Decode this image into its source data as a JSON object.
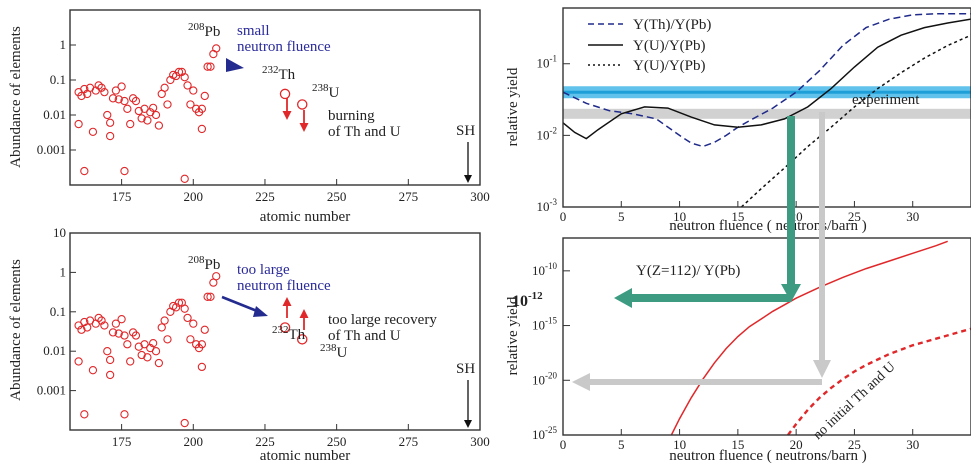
{
  "colors": {
    "marker": "#e0282a",
    "blue_arrow": "#232b8f",
    "red_arrow": "#e0282a",
    "green": "#3d9b82",
    "gray": "#c9c9c9",
    "band_blue": "#45b8e8",
    "band_gray": "#c8c8c8",
    "line_th": "#1f2a8a",
    "line_u": "#111111",
    "line_z112": "#e0282a"
  },
  "chart_data": [
    {
      "type": "scatter",
      "panel": "top-left",
      "ylabel": "Abundance of elements",
      "xlabel": "atomic  number",
      "xlim": [
        157,
        300
      ],
      "ylim": [
        0.0001,
        10
      ],
      "log_y": true,
      "x_ticks": [
        "175",
        "200",
        "225",
        "250",
        "275",
        "300"
      ],
      "y_ticks": [
        "0.001",
        "0.01",
        "0.1",
        "1"
      ],
      "points": [
        {
          "x": 160,
          "y": 0.045
        },
        {
          "x": 160,
          "y": 0.0055
        },
        {
          "x": 161,
          "y": 0.035
        },
        {
          "x": 162,
          "y": 0.055
        },
        {
          "x": 162,
          "y": 0.00025
        },
        {
          "x": 163,
          "y": 0.04
        },
        {
          "x": 164,
          "y": 0.06
        },
        {
          "x": 165,
          "y": 0.0033
        },
        {
          "x": 166,
          "y": 0.05
        },
        {
          "x": 167,
          "y": 0.07
        },
        {
          "x": 168,
          "y": 0.06
        },
        {
          "x": 169,
          "y": 0.045
        },
        {
          "x": 170,
          "y": 0.01
        },
        {
          "x": 171,
          "y": 0.006
        },
        {
          "x": 171,
          "y": 0.0025
        },
        {
          "x": 172,
          "y": 0.03
        },
        {
          "x": 173,
          "y": 0.05
        },
        {
          "x": 174,
          "y": 0.028
        },
        {
          "x": 175,
          "y": 0.065
        },
        {
          "x": 176,
          "y": 0.025
        },
        {
          "x": 176,
          "y": 0.00025
        },
        {
          "x": 177,
          "y": 0.015
        },
        {
          "x": 178,
          "y": 0.0055
        },
        {
          "x": 179,
          "y": 0.03
        },
        {
          "x": 180,
          "y": 0.025
        },
        {
          "x": 181,
          "y": 0.013
        },
        {
          "x": 182,
          "y": 0.008
        },
        {
          "x": 183,
          "y": 0.015
        },
        {
          "x": 184,
          "y": 0.007
        },
        {
          "x": 185,
          "y": 0.012
        },
        {
          "x": 186,
          "y": 0.016
        },
        {
          "x": 187,
          "y": 0.01
        },
        {
          "x": 188,
          "y": 0.005
        },
        {
          "x": 189,
          "y": 0.04
        },
        {
          "x": 190,
          "y": 0.06
        },
        {
          "x": 191,
          "y": 0.02
        },
        {
          "x": 192,
          "y": 0.1
        },
        {
          "x": 193,
          "y": 0.14
        },
        {
          "x": 194,
          "y": 0.13
        },
        {
          "x": 195,
          "y": 0.17
        },
        {
          "x": 196,
          "y": 0.17
        },
        {
          "x": 197,
          "y": 0.12
        },
        {
          "x": 197,
          "y": 0.00015
        },
        {
          "x": 198,
          "y": 0.07
        },
        {
          "x": 199,
          "y": 0.02
        },
        {
          "x": 200,
          "y": 0.05
        },
        {
          "x": 201,
          "y": 0.015
        },
        {
          "x": 202,
          "y": 0.012
        },
        {
          "x": 203,
          "y": 0.004
        },
        {
          "x": 203,
          "y": 0.015
        },
        {
          "x": 204,
          "y": 0.035
        },
        {
          "x": 205,
          "y": 0.24
        },
        {
          "x": 206,
          "y": 0.24
        },
        {
          "x": 207,
          "y": 0.55
        },
        {
          "x": 208,
          "y": 0.8
        }
      ],
      "highlight_points": [
        {
          "x": 232,
          "y": 0.04
        },
        {
          "x": 238,
          "y": 0.02
        }
      ],
      "labels": {
        "pb_mass": "208",
        "pb": "Pb",
        "fluence_1": "small",
        "fluence_2": "neutron fluence",
        "th_mass": "232",
        "th": "Th",
        "u_mass": "238",
        "u": "U",
        "note_1": "burning",
        "note_2": "of Th and U",
        "sh": "SH"
      }
    },
    {
      "type": "scatter",
      "panel": "bottom-left",
      "ylabel": "Abundance of elements",
      "xlabel": "atomic  number",
      "xlim": [
        157,
        300
      ],
      "ylim": [
        0.0001,
        10
      ],
      "log_y": true,
      "x_ticks": [
        "175",
        "200",
        "225",
        "250",
        "275",
        "300"
      ],
      "y_ticks": [
        "0.001",
        "0.01",
        "0.1",
        "1",
        "10"
      ],
      "highlight_points": [
        {
          "x": 232,
          "y": 0.04
        },
        {
          "x": 238,
          "y": 0.02
        }
      ],
      "labels": {
        "pb_mass": "208",
        "pb": "Pb",
        "fluence_1": "too large",
        "fluence_2": "neutron fluence",
        "th_mass": "232",
        "th": "Th",
        "u_mass": "238",
        "u": "U",
        "note_1": "too large recovery",
        "note_2": "of Th and U",
        "sh": "SH"
      }
    },
    {
      "type": "line",
      "panel": "top-right",
      "ylabel": "relative yield",
      "xlabel": "neutron fluence  ( neutrons/barn )",
      "xlim": [
        0,
        35
      ],
      "ylim": [
        0.001,
        0.6
      ],
      "log_y": true,
      "x_ticks": [
        "0",
        "5",
        "10",
        "15",
        "20",
        "25",
        "30"
      ],
      "y_ticks": [
        {
          "base": "10",
          "exp": "-1",
          "v": 0.1
        },
        {
          "base": "10",
          "exp": "-2",
          "v": 0.01
        },
        {
          "base": "10",
          "exp": "-3",
          "v": 0.001
        }
      ],
      "legend": [
        "Y(Th)/Y(Pb)",
        "Y(U)/Y(Pb)",
        "Y(U)/Y(Pb)"
      ],
      "experiment_label": "experiment",
      "series": [
        {
          "name": "Y(Th)/Y(Pb)",
          "style": "dashed",
          "x": [
            0,
            2,
            4,
            6,
            8,
            10,
            11,
            12,
            13,
            14,
            15,
            16,
            18,
            20,
            22,
            24,
            26,
            28,
            30,
            32,
            35
          ],
          "y": [
            0.04,
            0.028,
            0.022,
            0.02,
            0.017,
            0.01,
            0.0078,
            0.007,
            0.008,
            0.01,
            0.013,
            0.016,
            0.024,
            0.04,
            0.08,
            0.18,
            0.32,
            0.42,
            0.48,
            0.5,
            0.5
          ]
        },
        {
          "name": "Y(U)/Y(Pb)",
          "style": "solid",
          "x": [
            0,
            1,
            2,
            3,
            5,
            7,
            9,
            11,
            13,
            15,
            17,
            19,
            21,
            23,
            25,
            27,
            29,
            31,
            33,
            35
          ],
          "y": [
            0.015,
            0.011,
            0.009,
            0.012,
            0.02,
            0.025,
            0.024,
            0.018,
            0.014,
            0.013,
            0.014,
            0.017,
            0.025,
            0.045,
            0.09,
            0.17,
            0.25,
            0.32,
            0.37,
            0.42
          ]
        },
        {
          "name": "Y(U)/Y(Pb)",
          "style": "dotted",
          "x": [
            15.3,
            17,
            19,
            21,
            23,
            25,
            27,
            29,
            31,
            33,
            35
          ],
          "y": [
            0.001,
            0.0018,
            0.0035,
            0.007,
            0.013,
            0.025,
            0.045,
            0.075,
            0.12,
            0.18,
            0.25
          ]
        }
      ],
      "bands": [
        {
          "color": "band_blue",
          "y": 0.04
        },
        {
          "color": "band_gray",
          "y": 0.02
        }
      ]
    },
    {
      "type": "line",
      "panel": "bottom-right",
      "ylabel": "relative yield",
      "xlabel": "neutron fluence  ( neutrons/barn )",
      "xlim": [
        0,
        35
      ],
      "ylim_exp": [
        -25,
        -7
      ],
      "log_y": true,
      "x_ticks": [
        "0",
        "5",
        "10",
        "15",
        "20",
        "25",
        "30"
      ],
      "y_ticks": [
        {
          "base": "10",
          "exp": "-10",
          "v": -10
        },
        {
          "base": "10",
          "exp": "-15",
          "v": -15
        },
        {
          "base": "10",
          "exp": "-20",
          "v": -20
        },
        {
          "base": "10",
          "exp": "-25",
          "v": -25
        }
      ],
      "series_label": "Y(Z=112)/ Y(Pb)",
      "annotation_value": {
        "base": "10",
        "exp": "-12"
      },
      "annotation_note": "no initial Th and U",
      "series": [
        {
          "name": "Y(Z=112)/ Y(Pb)",
          "style": "solid",
          "x": [
            9.3,
            10,
            11,
            12,
            13,
            14,
            15,
            16,
            17,
            18,
            19,
            20,
            22,
            24,
            26,
            28,
            30,
            32,
            33
          ],
          "y_exp": [
            -25,
            -23.5,
            -21.6,
            -19.9,
            -18.4,
            -17.1,
            -16,
            -15.1,
            -14.4,
            -13.7,
            -13.1,
            -12.5,
            -11.5,
            -10.6,
            -9.8,
            -9.1,
            -8.4,
            -7.7,
            -7.3
          ]
        },
        {
          "style": "dashed",
          "x": [
            19.3,
            20,
            21,
            22,
            23,
            24,
            25,
            26,
            27,
            28,
            29,
            30,
            31,
            32,
            33,
            34,
            35
          ],
          "y_exp": [
            -25,
            -24,
            -22.7,
            -21.6,
            -20.7,
            -19.9,
            -19.2,
            -18.6,
            -18.1,
            -17.6,
            -17.2,
            -16.8,
            -16.5,
            -16.2,
            -15.9,
            -15.6,
            -15.3
          ]
        }
      ]
    }
  ]
}
